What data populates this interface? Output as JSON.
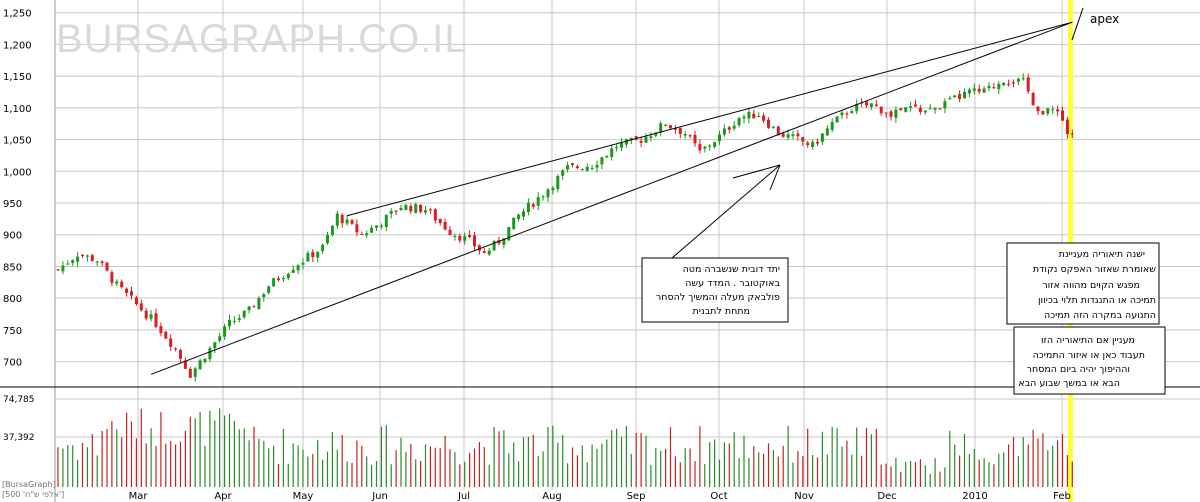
{
  "watermark": "BURSAGRAPH.CO.IL",
  "corner_labels": [
    "[BursaGraph]",
    "[500 'אלפי ש\"ח']"
  ],
  "colors": {
    "up": "#1a9a1a",
    "down": "#d81e1e",
    "grid": "#c8c8c8",
    "highlight": "#ffff33",
    "volume_up": "#2a8a2a",
    "volume_down": "#c82020"
  },
  "chart_data": {
    "type": "candlestick",
    "ylim": [
      660,
      1270
    ],
    "y_ticks": [
      {
        "v": 700,
        "label": "700"
      },
      {
        "v": 750,
        "label": "750"
      },
      {
        "v": 800,
        "label": "800"
      },
      {
        "v": 850,
        "label": "850"
      },
      {
        "v": 900,
        "label": "900"
      },
      {
        "v": 950,
        "label": "950"
      },
      {
        "v": 1000,
        "label": "1,000"
      },
      {
        "v": 1050,
        "label": "1,050"
      },
      {
        "v": 1100,
        "label": "1,100"
      },
      {
        "v": 1150,
        "label": "1,150"
      },
      {
        "v": 1200,
        "label": "1,200"
      },
      {
        "v": 1250,
        "label": "1,250"
      }
    ],
    "x_months": [
      "Mar",
      "Apr",
      "May",
      "Jun",
      "Jul",
      "Aug",
      "Sep",
      "Oct",
      "Nov",
      "Dec",
      "2010",
      "Feb"
    ],
    "price_path": [
      [
        0,
        845
      ],
      [
        4,
        870
      ],
      [
        8,
        860
      ],
      [
        12,
        820
      ],
      [
        16,
        790
      ],
      [
        20,
        760
      ],
      [
        24,
        720
      ],
      [
        27,
        680
      ],
      [
        31,
        720
      ],
      [
        35,
        760
      ],
      [
        39,
        780
      ],
      [
        43,
        820
      ],
      [
        48,
        850
      ],
      [
        54,
        880
      ],
      [
        57,
        930
      ],
      [
        62,
        900
      ],
      [
        66,
        920
      ],
      [
        70,
        945
      ],
      [
        75,
        940
      ],
      [
        80,
        905
      ],
      [
        84,
        890
      ],
      [
        87,
        870
      ],
      [
        90,
        890
      ],
      [
        94,
        930
      ],
      [
        99,
        965
      ],
      [
        104,
        1005
      ],
      [
        109,
        1010
      ],
      [
        114,
        1040
      ],
      [
        119,
        1050
      ],
      [
        124,
        1075
      ],
      [
        128,
        1060
      ],
      [
        131,
        1030
      ],
      [
        135,
        1055
      ],
      [
        139,
        1085
      ],
      [
        143,
        1090
      ],
      [
        147,
        1060
      ],
      [
        151,
        1050
      ],
      [
        154,
        1040
      ],
      [
        158,
        1075
      ],
      [
        162,
        1100
      ],
      [
        166,
        1105
      ],
      [
        170,
        1090
      ],
      [
        174,
        1100
      ],
      [
        178,
        1095
      ],
      [
        182,
        1110
      ],
      [
        186,
        1125
      ],
      [
        189,
        1125
      ],
      [
        193,
        1145
      ],
      [
        197,
        1140
      ],
      [
        199,
        1110
      ],
      [
        201,
        1090
      ],
      [
        204,
        1100
      ],
      [
        206,
        1060
      ]
    ],
    "volume_axis": {
      "ticks": [
        "74,785",
        "37,392"
      ]
    },
    "lines": [
      {
        "name": "upper",
        "from": [
          59,
          930
        ],
        "to": [
          207,
          1235
        ]
      },
      {
        "name": "lower",
        "from": [
          19,
          680
        ],
        "to": [
          207,
          1235
        ]
      }
    ],
    "annotations": {
      "apex_label": "apex",
      "box1": [
        "יתד דובית שנשברה מטה",
        "באוקטובר . המדד עשה",
        "פולבאק מעלה והמשיך להסחר",
        "מתחת לתבנית"
      ],
      "box2": [
        "ישנה תיאוריה מעניינת",
        "שאומרת שאזור האפקס נקודת",
        "מפגש הקוים מהווה אזור",
        "תמיכה או התנגדות תלוי בכיוון",
        "התנועה  במקרה הזה תמיכה"
      ],
      "box3": [
        "מעניין אם התיאוריה הזו",
        "תעבוד כאן או איזור התמיכה",
        "וההיפוך יהיה ביום המסחר",
        "הבא  או במשך שבוע הבא"
      ]
    }
  }
}
